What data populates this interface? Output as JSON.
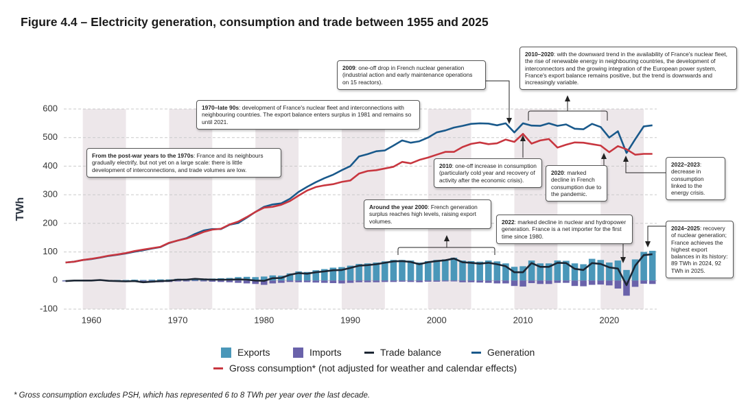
{
  "chart_data": {
    "type": "combo",
    "title": "Figure 4.4 – Electricity generation, consumption and trade between 1955 and 2025",
    "y_label": "TWh",
    "footnote": "* Gross consumption excludes PSH, which has represented 6 to 8 TWh per year over the last decade.",
    "x": [
      1957,
      1958,
      1959,
      1960,
      1961,
      1962,
      1963,
      1964,
      1965,
      1966,
      1967,
      1968,
      1969,
      1970,
      1971,
      1972,
      1973,
      1974,
      1975,
      1976,
      1977,
      1978,
      1979,
      1980,
      1981,
      1982,
      1983,
      1984,
      1985,
      1986,
      1987,
      1988,
      1989,
      1990,
      1991,
      1992,
      1993,
      1994,
      1995,
      1996,
      1997,
      1998,
      1999,
      2000,
      2001,
      2002,
      2003,
      2004,
      2005,
      2006,
      2007,
      2008,
      2009,
      2010,
      2011,
      2012,
      2013,
      2014,
      2015,
      2016,
      2017,
      2018,
      2019,
      2020,
      2021,
      2022,
      2023,
      2024,
      2025
    ],
    "xlim": [
      1956.8,
      2025.5
    ],
    "xticks": [
      1960,
      1970,
      1980,
      1990,
      2000,
      2010,
      2020
    ],
    "ylim": [
      -100,
      600
    ],
    "yticks": [
      -100,
      0,
      100,
      200,
      300,
      400,
      500,
      600
    ],
    "grid": true,
    "series": [
      {
        "name": "Exports",
        "type": "bar",
        "color": "#4a97b9",
        "values": [
          1,
          2,
          2,
          2,
          3,
          2,
          2,
          2,
          3,
          2,
          3,
          4,
          4,
          6,
          6,
          8,
          7,
          7,
          8,
          9,
          12,
          13,
          12,
          14,
          18,
          17,
          25,
          32,
          30,
          36,
          40,
          45,
          47,
          52,
          58,
          60,
          63,
          67,
          72,
          72,
          70,
          63,
          68,
          72,
          74,
          80,
          70,
          68,
          66,
          70,
          67,
          60,
          48,
          50,
          70,
          60,
          60,
          70,
          69,
          60,
          57,
          76,
          72,
          63,
          70,
          37,
          74,
          100,
          104
        ]
      },
      {
        "name": "Imports",
        "type": "bar",
        "color": "#6a62aa",
        "values": [
          -3,
          -2,
          -2,
          -2,
          -1,
          -3,
          -4,
          -5,
          -5,
          -8,
          -7,
          -6,
          -5,
          -3,
          -3,
          -2,
          -3,
          -4,
          -5,
          -6,
          -8,
          -10,
          -12,
          -15,
          -10,
          -8,
          -5,
          -6,
          -6,
          -7,
          -8,
          -9,
          -10,
          -8,
          -6,
          -6,
          -6,
          -5,
          -5,
          -4,
          -5,
          -6,
          -4,
          -4,
          -3,
          -3,
          -6,
          -6,
          -7,
          -8,
          -10,
          -10,
          -19,
          -21,
          -9,
          -12,
          -12,
          -8,
          -8,
          -19,
          -20,
          -15,
          -14,
          -17,
          -28,
          -53,
          -22,
          -11,
          -12
        ]
      },
      {
        "name": "Trade balance",
        "type": "line",
        "color": "#1c2633",
        "values": [
          -2,
          0,
          0,
          0,
          2,
          -1,
          -2,
          -3,
          -2,
          -6,
          -4,
          -2,
          -1,
          3,
          3,
          6,
          4,
          3,
          3,
          3,
          4,
          3,
          0,
          -1,
          8,
          9,
          20,
          26,
          24,
          29,
          32,
          36,
          37,
          44,
          52,
          54,
          57,
          62,
          67,
          68,
          65,
          57,
          64,
          68,
          71,
          77,
          64,
          62,
          59,
          62,
          57,
          50,
          29,
          29,
          61,
          48,
          48,
          62,
          61,
          41,
          37,
          61,
          58,
          46,
          42,
          -16,
          52,
          89,
          92
        ]
      },
      {
        "name": "Generation",
        "type": "line",
        "color": "#19598b",
        "values": [
          63,
          66,
          72,
          75,
          80,
          86,
          90,
          95,
          101,
          106,
          112,
          117,
          131,
          140,
          148,
          163,
          175,
          180,
          180,
          195,
          201,
          220,
          240,
          258,
          266,
          270,
          286,
          310,
          328,
          344,
          358,
          370,
          386,
          400,
          434,
          442,
          452,
          455,
          472,
          490,
          482,
          487,
          500,
          518,
          525,
          535,
          541,
          548,
          550,
          549,
          543,
          550,
          518,
          550,
          542,
          541,
          550,
          541,
          546,
          531,
          529,
          548,
          537,
          500,
          522,
          446,
          494,
          539,
          543
        ]
      },
      {
        "name": "Gross consumption* (not adjusted for weather and calendar effects)",
        "type": "line",
        "color": "#c8363f",
        "values": [
          63,
          66,
          72,
          76,
          81,
          87,
          91,
          96,
          103,
          108,
          113,
          118,
          132,
          140,
          147,
          158,
          170,
          178,
          181,
          196,
          206,
          222,
          240,
          255,
          258,
          265,
          278,
          297,
          315,
          327,
          333,
          337,
          345,
          350,
          374,
          383,
          386,
          392,
          398,
          415,
          410,
          422,
          430,
          440,
          450,
          450,
          467,
          478,
          483,
          477,
          480,
          493,
          485,
          513,
          479,
          490,
          495,
          465,
          475,
          483,
          482,
          477,
          472,
          449,
          470,
          459,
          440,
          443,
          443
        ]
      }
    ],
    "annotations": [
      {
        "bold": "From the post-war years to the 1970s",
        "text": ": France and its neighbours gradually electrify, but not yet on a large scale: there is little development of interconnections, and trade volumes are low."
      },
      {
        "bold": "1970–late 90s",
        "text": ": development of France's nuclear fleet and interconnections with neighbouring countries. The export balance enters surplus in 1981 and remains so until 2021."
      },
      {
        "bold": "2009",
        "text": ": one-off drop in French nuclear generation (industrial action and early maintenance operations on 15 reactors)."
      },
      {
        "bold": "2010–2020",
        "text": ": with the downward trend in the availability of France's nuclear fleet, the rise of renewable energy in neighbouring countries, the development of interconnectors and the growing integration of the European power system, France's export balance remains positive, but the trend is downwards and increasingly variable."
      },
      {
        "bold": "2010",
        "text": ": one-off increase in consumption (particularly cold year and recovery of activity after the economic crisis)."
      },
      {
        "bold": "2020",
        "text": ": marked decline in French consumption due to the pandemic."
      },
      {
        "bold": "2022–2023",
        "text": ": decrease in consumption linked to the energy crisis."
      },
      {
        "bold": "Around the year 2000",
        "text": ": French generation surplus reaches high levels, raising export volumes."
      },
      {
        "bold": "2022",
        "text": ": marked decline in nuclear and hydropower generation. France is a net importer for the first time since 1980."
      },
      {
        "bold": "2024–2025",
        "text": ": recovery of nuclear generation; France achieves the highest export balances in its history: 89 TWh in 2024, 92 TWh in 2025."
      }
    ]
  }
}
